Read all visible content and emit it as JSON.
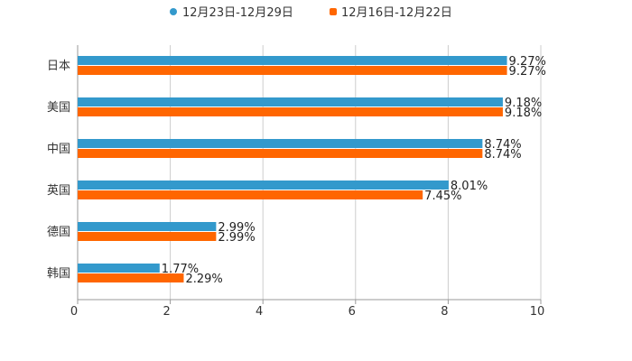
{
  "chart_data": {
    "type": "bar",
    "orientation": "horizontal",
    "title": "",
    "xlabel": "",
    "ylabel": "",
    "xlim": [
      0,
      10
    ],
    "xticks": [
      0,
      2,
      4,
      6,
      8,
      10
    ],
    "grid": true,
    "legend_position": "top-center",
    "categories": [
      "日本",
      "美国",
      "中国",
      "英国",
      "德国",
      "韩国"
    ],
    "series": [
      {
        "name": "12月23日-12月29日",
        "color": "#3399cc",
        "values": [
          9.27,
          9.18,
          8.74,
          8.01,
          2.99,
          1.77
        ],
        "labels": [
          "9.27%",
          "9.18%",
          "8.74%",
          "8.01%",
          "2.99%",
          "1.77%"
        ]
      },
      {
        "name": "12月16日-12月22日",
        "color": "#ff6600",
        "values": [
          9.27,
          9.18,
          8.74,
          7.45,
          2.99,
          2.29
        ],
        "labels": [
          "9.27%",
          "9.18%",
          "8.74%",
          "7.45%",
          "2.99%",
          "2.29%"
        ]
      }
    ]
  }
}
